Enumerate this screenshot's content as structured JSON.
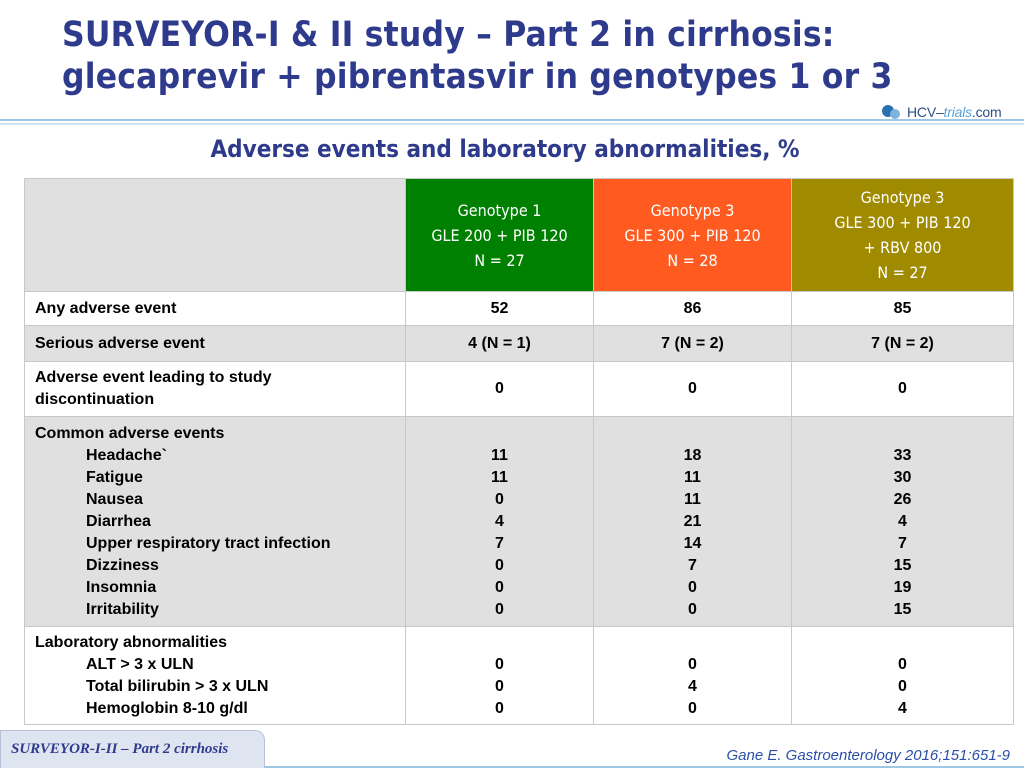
{
  "slide": {
    "title_line1": "SURVEYOR-I & II study – Part 2 in cirrhosis:",
    "title_line2": "glecaprevir + pibrentasvir in genotypes 1 or 3",
    "subtitle": "Adverse events and laboratory abnormalities, %",
    "logo_hcv": "HCV–",
    "logo_trials": "trials",
    "logo_com": ".com",
    "footer_tab": "SURVEYOR-I-II – Part 2 cirrhosis",
    "reference": "Gane E. Gastroenterology 2016;151:651-9"
  },
  "colors": {
    "title": "#2e3a8c",
    "genotype1": "#008000",
    "genotype3": "#ff5a1f",
    "genotype3_rbv": "#a08b00",
    "row_grey": "#e0e0e0"
  },
  "table": {
    "headers": [
      {
        "lines": [
          "Genotype 1",
          "GLE 200 + PIB 120",
          "N = 27"
        ]
      },
      {
        "lines": [
          "Genotype 3",
          "GLE 300 + PIB 120",
          "N = 28"
        ]
      },
      {
        "lines": [
          "Genotype 3",
          "GLE 300 + PIB 120",
          "+ RBV 800",
          "N = 27"
        ]
      }
    ],
    "rows": [
      {
        "label": "Any adverse event",
        "values": [
          "52",
          "86",
          "85"
        ]
      },
      {
        "label": "Serious adverse event",
        "values": [
          "4 (N = 1)",
          "7 (N = 2)",
          "7 (N = 2)"
        ]
      },
      {
        "label_lines": [
          "Adverse event leading to study",
          "discontinuation"
        ],
        "values": [
          "0",
          "0",
          "0"
        ]
      }
    ],
    "common": {
      "heading": "Common adverse events",
      "items": [
        "Headache`",
        "Fatigue",
        "Nausea",
        "Diarrhea",
        "Upper respiratory tract infection",
        "Dizziness",
        "Insomnia",
        "Irritability"
      ],
      "columns": [
        [
          "11",
          "11",
          "0",
          "4",
          "7",
          "0",
          "0",
          "0"
        ],
        [
          "18",
          "11",
          "11",
          "21",
          "14",
          "7",
          "0",
          "0"
        ],
        [
          "33",
          "30",
          "26",
          "4",
          "7",
          "15",
          "19",
          "15"
        ]
      ]
    },
    "lab": {
      "heading": "Laboratory abnormalities",
      "items": [
        "ALT > 3 x ULN",
        "Total bilirubin > 3 x ULN",
        "Hemoglobin 8-10 g/dl"
      ],
      "columns": [
        [
          "0",
          "0",
          "0"
        ],
        [
          "0",
          "4",
          "0"
        ],
        [
          "0",
          "0",
          "4"
        ]
      ]
    }
  }
}
